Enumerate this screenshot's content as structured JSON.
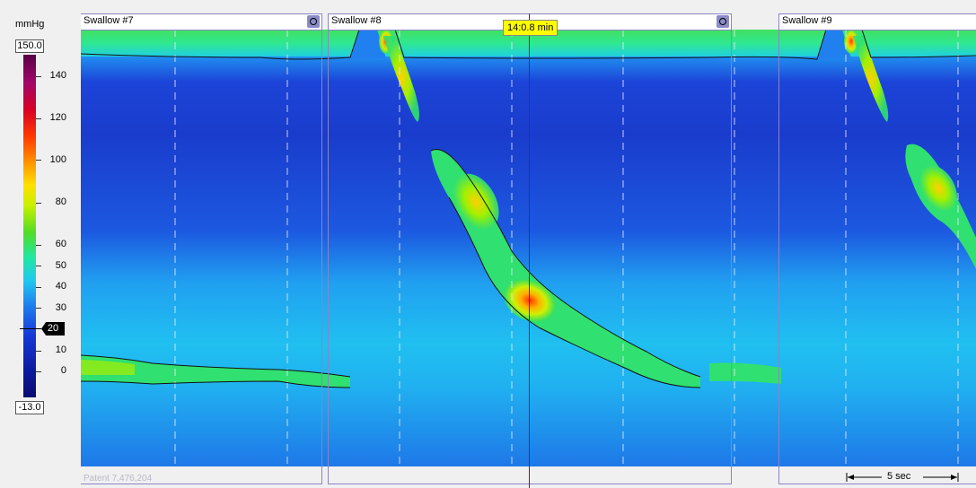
{
  "colorbar": {
    "unit": "mmHg",
    "max_box": "150.0",
    "min_box": "-13.0",
    "ticks": [
      "140",
      "120",
      "100",
      "80",
      "60",
      "50",
      "40",
      "30",
      "20",
      "10",
      "0"
    ],
    "marker_value": "20"
  },
  "swallows": [
    {
      "label": "Swallow #7"
    },
    {
      "label": "Swallow #8"
    },
    {
      "label": "Swallow #9"
    }
  ],
  "cursor": {
    "time_label": "14:0.8 min",
    "color": "#c00000"
  },
  "footer": {
    "patent": "Patent 7,476,204",
    "scale_label": "5 sec"
  },
  "colors": {
    "background": "#1e68e8",
    "swallow_border": "#8b84c8",
    "badge": "#ffff00"
  }
}
